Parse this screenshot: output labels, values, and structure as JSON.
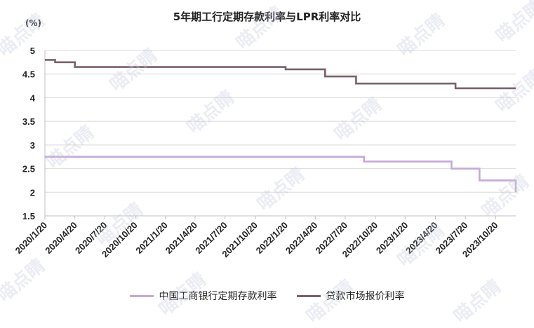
{
  "chart_data": {
    "type": "line",
    "title": "5年期工行定期存款利率与LPR利率对比",
    "ylabel": "(%)",
    "ylim": [
      1.5,
      5
    ],
    "yticks": [
      "1.5",
      "2",
      "2.5",
      "3",
      "3.5",
      "4",
      "4.5",
      "5"
    ],
    "xlim": [
      "2020-01-20",
      "2023-12-20"
    ],
    "xticks": [
      {
        "date": "2020-01-20",
        "label": "2020/1/20"
      },
      {
        "date": "2020-04-20",
        "label": "2020/4/20"
      },
      {
        "date": "2020-07-20",
        "label": "2020/7/20"
      },
      {
        "date": "2020-10-20",
        "label": "2020/10/20"
      },
      {
        "date": "2021-01-20",
        "label": "2021/1/20"
      },
      {
        "date": "2021-04-20",
        "label": "2021/4/20"
      },
      {
        "date": "2021-07-20",
        "label": "2021/7/20"
      },
      {
        "date": "2021-10-20",
        "label": "2021/10/20"
      },
      {
        "date": "2022-01-20",
        "label": "2022/1/20"
      },
      {
        "date": "2022-04-20",
        "label": "2022/4/20"
      },
      {
        "date": "2022-07-20",
        "label": "2022/7/20"
      },
      {
        "date": "2022-10-20",
        "label": "2022/10/20"
      },
      {
        "date": "2023-01-20",
        "label": "2023/1/20"
      },
      {
        "date": "2023-04-20",
        "label": "2023/4/20"
      },
      {
        "date": "2023-07-20",
        "label": "2023/7/20"
      },
      {
        "date": "2023-10-20",
        "label": "2023/10/20"
      }
    ],
    "grid": true,
    "legend_position": "bottom",
    "series": [
      {
        "name": "中国工商银行定期存款利率",
        "color": "#c7a8d8",
        "step": true,
        "points": [
          {
            "x": "2020-01-20",
            "y": 2.75
          },
          {
            "x": "2022-09-15",
            "y": 2.65
          },
          {
            "x": "2023-06-08",
            "y": 2.5
          },
          {
            "x": "2023-09-01",
            "y": 2.25
          },
          {
            "x": "2023-12-20",
            "y": 2.0
          }
        ]
      },
      {
        "name": "贷款市场报价利率",
        "color": "#7b6068",
        "step": true,
        "points": [
          {
            "x": "2020-01-20",
            "y": 4.8
          },
          {
            "x": "2020-02-20",
            "y": 4.75
          },
          {
            "x": "2020-04-20",
            "y": 4.65
          },
          {
            "x": "2021-12-20",
            "y": 4.65
          },
          {
            "x": "2022-01-20",
            "y": 4.6
          },
          {
            "x": "2022-05-20",
            "y": 4.45
          },
          {
            "x": "2022-08-22",
            "y": 4.3
          },
          {
            "x": "2023-06-20",
            "y": 4.2
          },
          {
            "x": "2023-12-20",
            "y": 4.2
          }
        ]
      }
    ],
    "watermark": "喵点睛"
  }
}
